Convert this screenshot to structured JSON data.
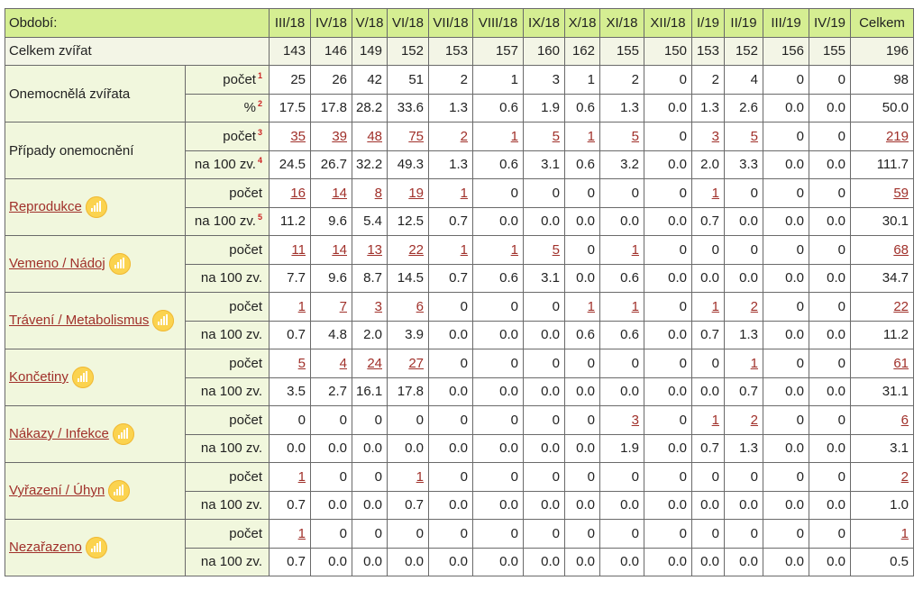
{
  "header": {
    "period_label": "Období:",
    "periods": [
      "III/18",
      "IV/18",
      "V/18",
      "VI/18",
      "VII/18",
      "VIII/18",
      "IX/18",
      "X/18",
      "XI/18",
      "XII/18",
      "I/19",
      "II/19",
      "III/19",
      "IV/19"
    ],
    "total_label": "Celkem"
  },
  "total_animals": {
    "label": "Celkem zvířat",
    "values": [
      "143",
      "146",
      "149",
      "152",
      "153",
      "157",
      "160",
      "162",
      "155",
      "150",
      "153",
      "152",
      "156",
      "155"
    ],
    "total": "196"
  },
  "groups": [
    {
      "label": "Onemocnělá zvířata",
      "link": false,
      "icon": "",
      "rows": [
        {
          "label": "počet",
          "sup": "1",
          "values": [
            "25",
            "26",
            "42",
            "51",
            "2",
            "1",
            "3",
            "1",
            "2",
            "0",
            "2",
            "4",
            "0",
            "0"
          ],
          "total": "98",
          "links": []
        },
        {
          "label": "%",
          "sup": "2",
          "values": [
            "17.5",
            "17.8",
            "28.2",
            "33.6",
            "1.3",
            "0.6",
            "1.9",
            "0.6",
            "1.3",
            "0.0",
            "1.3",
            "2.6",
            "0.0",
            "0.0"
          ],
          "total": "50.0",
          "links": []
        }
      ]
    },
    {
      "label": "Případy onemocnění",
      "link": false,
      "icon": "",
      "rows": [
        {
          "label": "počet",
          "sup": "3",
          "values": [
            "35",
            "39",
            "48",
            "75",
            "2",
            "1",
            "5",
            "1",
            "5",
            "0",
            "3",
            "5",
            "0",
            "0"
          ],
          "total": "219",
          "links": [
            0,
            1,
            2,
            3,
            4,
            5,
            6,
            7,
            8,
            10,
            11,
            14
          ]
        },
        {
          "label": "na 100 zv.",
          "sup": "4",
          "values": [
            "24.5",
            "26.7",
            "32.2",
            "49.3",
            "1.3",
            "0.6",
            "3.1",
            "0.6",
            "3.2",
            "0.0",
            "2.0",
            "3.3",
            "0.0",
            "0.0"
          ],
          "total": "111.7",
          "links": []
        }
      ]
    },
    {
      "label": "Reprodukce",
      "link": true,
      "icon": "bar-chart-icon",
      "rows": [
        {
          "label": "počet",
          "sup": "",
          "values": [
            "16",
            "14",
            "8",
            "19",
            "1",
            "0",
            "0",
            "0",
            "0",
            "0",
            "1",
            "0",
            "0",
            "0"
          ],
          "total": "59",
          "links": [
            0,
            1,
            2,
            3,
            4,
            10,
            14
          ]
        },
        {
          "label": "na 100 zv.",
          "sup": "5",
          "values": [
            "11.2",
            "9.6",
            "5.4",
            "12.5",
            "0.7",
            "0.0",
            "0.0",
            "0.0",
            "0.0",
            "0.0",
            "0.7",
            "0.0",
            "0.0",
            "0.0"
          ],
          "total": "30.1",
          "links": []
        }
      ]
    },
    {
      "label": "Vemeno / Nádoj",
      "link": true,
      "icon": "bar-chart-icon",
      "rows": [
        {
          "label": "počet",
          "sup": "",
          "values": [
            "11",
            "14",
            "13",
            "22",
            "1",
            "1",
            "5",
            "0",
            "1",
            "0",
            "0",
            "0",
            "0",
            "0"
          ],
          "total": "68",
          "links": [
            0,
            1,
            2,
            3,
            4,
            5,
            6,
            8,
            14
          ]
        },
        {
          "label": "na 100 zv.",
          "sup": "",
          "values": [
            "7.7",
            "9.6",
            "8.7",
            "14.5",
            "0.7",
            "0.6",
            "3.1",
            "0.0",
            "0.6",
            "0.0",
            "0.0",
            "0.0",
            "0.0",
            "0.0"
          ],
          "total": "34.7",
          "links": []
        }
      ]
    },
    {
      "label": "Trávení / Metabolismus",
      "link": true,
      "icon": "bar-chart-icon",
      "rows": [
        {
          "label": "počet",
          "sup": "",
          "values": [
            "1",
            "7",
            "3",
            "6",
            "0",
            "0",
            "0",
            "1",
            "1",
            "0",
            "1",
            "2",
            "0",
            "0"
          ],
          "total": "22",
          "links": [
            0,
            1,
            2,
            3,
            7,
            8,
            10,
            11,
            14
          ]
        },
        {
          "label": "na 100 zv.",
          "sup": "",
          "values": [
            "0.7",
            "4.8",
            "2.0",
            "3.9",
            "0.0",
            "0.0",
            "0.0",
            "0.6",
            "0.6",
            "0.0",
            "0.7",
            "1.3",
            "0.0",
            "0.0"
          ],
          "total": "11.2",
          "links": []
        }
      ]
    },
    {
      "label": "Končetiny",
      "link": true,
      "icon": "bar-chart-icon",
      "rows": [
        {
          "label": "počet",
          "sup": "",
          "values": [
            "5",
            "4",
            "24",
            "27",
            "0",
            "0",
            "0",
            "0",
            "0",
            "0",
            "0",
            "1",
            "0",
            "0"
          ],
          "total": "61",
          "links": [
            0,
            1,
            2,
            3,
            11,
            14
          ]
        },
        {
          "label": "na 100 zv.",
          "sup": "",
          "values": [
            "3.5",
            "2.7",
            "16.1",
            "17.8",
            "0.0",
            "0.0",
            "0.0",
            "0.0",
            "0.0",
            "0.0",
            "0.0",
            "0.7",
            "0.0",
            "0.0"
          ],
          "total": "31.1",
          "links": []
        }
      ]
    },
    {
      "label": "Nákazy / Infekce",
      "link": true,
      "icon": "bar-chart-icon",
      "rows": [
        {
          "label": "počet",
          "sup": "",
          "values": [
            "0",
            "0",
            "0",
            "0",
            "0",
            "0",
            "0",
            "0",
            "3",
            "0",
            "1",
            "2",
            "0",
            "0"
          ],
          "total": "6",
          "links": [
            8,
            10,
            11,
            14
          ]
        },
        {
          "label": "na 100 zv.",
          "sup": "",
          "values": [
            "0.0",
            "0.0",
            "0.0",
            "0.0",
            "0.0",
            "0.0",
            "0.0",
            "0.0",
            "1.9",
            "0.0",
            "0.7",
            "1.3",
            "0.0",
            "0.0"
          ],
          "total": "3.1",
          "links": []
        }
      ]
    },
    {
      "label": "Vyřazení / Úhyn",
      "link": true,
      "icon": "bar-chart-icon",
      "rows": [
        {
          "label": "počet",
          "sup": "",
          "values": [
            "1",
            "0",
            "0",
            "1",
            "0",
            "0",
            "0",
            "0",
            "0",
            "0",
            "0",
            "0",
            "0",
            "0"
          ],
          "total": "2",
          "links": [
            0,
            3,
            14
          ]
        },
        {
          "label": "na 100 zv.",
          "sup": "",
          "values": [
            "0.7",
            "0.0",
            "0.0",
            "0.7",
            "0.0",
            "0.0",
            "0.0",
            "0.0",
            "0.0",
            "0.0",
            "0.0",
            "0.0",
            "0.0",
            "0.0"
          ],
          "total": "1.0",
          "links": []
        }
      ]
    },
    {
      "label": "Nezařazeno",
      "link": true,
      "icon": "bar-chart-icon",
      "rows": [
        {
          "label": "počet",
          "sup": "",
          "values": [
            "1",
            "0",
            "0",
            "0",
            "0",
            "0",
            "0",
            "0",
            "0",
            "0",
            "0",
            "0",
            "0",
            "0"
          ],
          "total": "1",
          "links": [
            0,
            14
          ]
        },
        {
          "label": "na 100 zv.",
          "sup": "",
          "values": [
            "0.7",
            "0.0",
            "0.0",
            "0.0",
            "0.0",
            "0.0",
            "0.0",
            "0.0",
            "0.0",
            "0.0",
            "0.0",
            "0.0",
            "0.0",
            "0.0"
          ],
          "total": "0.5",
          "links": []
        }
      ]
    }
  ]
}
